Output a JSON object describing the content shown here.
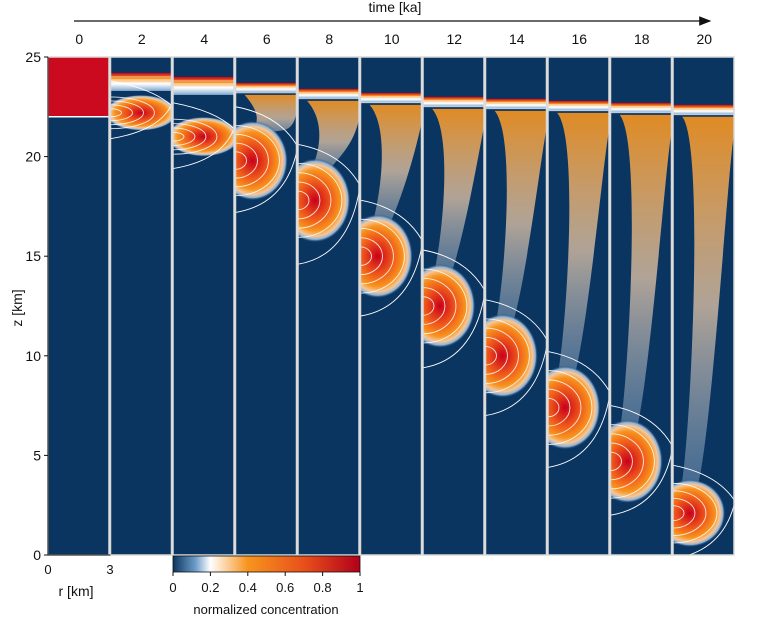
{
  "chart_data": {
    "type": "heatmap",
    "title": "",
    "time_axis": {
      "label": "time [ka]",
      "ticks": [
        "0",
        "2",
        "4",
        "6",
        "8",
        "10",
        "12",
        "14",
        "16",
        "18",
        "20"
      ]
    },
    "z_axis": {
      "label": "z [km]",
      "range": [
        0,
        25
      ],
      "ticks": [
        "0",
        "5",
        "10",
        "15",
        "20",
        "25"
      ]
    },
    "r_axis": {
      "label": "r [km]",
      "range": [
        0,
        3
      ],
      "ticks": [
        "0",
        "3"
      ]
    },
    "colorbar": {
      "label": "normalized concentration",
      "range": [
        0,
        1
      ],
      "ticks": [
        "0",
        "0.2",
        "0.4",
        "0.6",
        "0.8",
        "1"
      ],
      "colors": [
        "#0b3561",
        "#6d9cc8",
        "#ffffff",
        "#f7941d",
        "#d7191c",
        "#b2001a"
      ]
    },
    "panels": [
      {
        "time": 0,
        "blob_center_z": null,
        "layer_top_z": 25.0,
        "layer_bottom_z": 22.0
      },
      {
        "time": 2,
        "blob_center_z": 22.2,
        "layer_top_z": 24.2,
        "layer_bottom_z": 21.5
      },
      {
        "time": 4,
        "blob_center_z": 21.0,
        "layer_top_z": 24.0,
        "layer_bottom_z": 20.0
      },
      {
        "time": 6,
        "blob_center_z": 19.8,
        "layer_top_z": 23.7,
        "layer_bottom_z": 17.8
      },
      {
        "time": 8,
        "blob_center_z": 17.8,
        "layer_top_z": 23.4,
        "layer_bottom_z": 15.2
      },
      {
        "time": 10,
        "blob_center_z": 15.0,
        "layer_top_z": 23.2,
        "layer_bottom_z": 12.6
      },
      {
        "time": 12,
        "blob_center_z": 12.5,
        "layer_top_z": 23.0,
        "layer_bottom_z": 10.0
      },
      {
        "time": 14,
        "blob_center_z": 10.0,
        "layer_top_z": 22.9,
        "layer_bottom_z": 7.6
      },
      {
        "time": 16,
        "blob_center_z": 7.4,
        "layer_top_z": 22.8,
        "layer_bottom_z": 5.0
      },
      {
        "time": 18,
        "blob_center_z": 4.7,
        "layer_top_z": 22.7,
        "layer_bottom_z": 2.6
      },
      {
        "time": 20,
        "blob_center_z": 2.1,
        "layer_top_z": 22.6,
        "layer_bottom_z": 0.4
      }
    ]
  }
}
